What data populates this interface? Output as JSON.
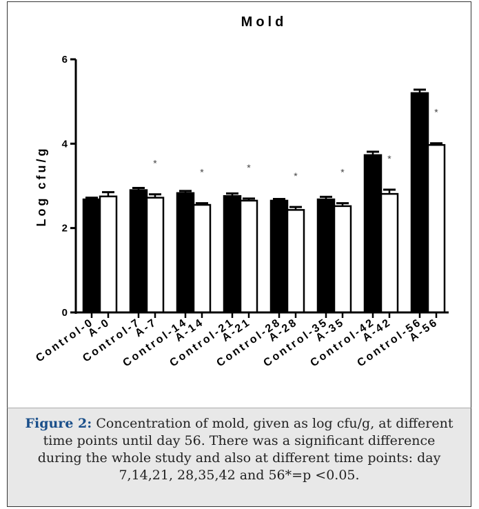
{
  "chart_data": {
    "type": "bar",
    "title": "Mold",
    "ylabel": "Log cfu/g",
    "xlabel": "",
    "ylim": [
      0,
      6
    ],
    "yticks": [
      0,
      2,
      4,
      6
    ],
    "grid": false,
    "categories": [
      "Control-0",
      "A-0",
      "Control-7",
      "A-7",
      "Control-14",
      "A-14",
      "Control-21",
      "A-21",
      "Control-28",
      "A-28",
      "Control-35",
      "A-35",
      "Control-42",
      "A-42",
      "Control-56",
      "A-56"
    ],
    "values": [
      2.68,
      2.75,
      2.9,
      2.72,
      2.83,
      2.55,
      2.76,
      2.65,
      2.65,
      2.43,
      2.68,
      2.52,
      3.73,
      2.81,
      5.2,
      3.97
    ],
    "errors": [
      0.04,
      0.1,
      0.05,
      0.08,
      0.05,
      0.04,
      0.06,
      0.05,
      0.04,
      0.07,
      0.06,
      0.07,
      0.08,
      0.1,
      0.08,
      0.04
    ],
    "significance_marks": [
      "",
      "",
      "",
      "*",
      "",
      "*",
      "",
      "*",
      "",
      "*",
      "",
      "*",
      "",
      "*",
      "",
      "*"
    ],
    "bar_fill": [
      "#000000",
      "#ffffff"
    ],
    "bar_stroke": "#000000"
  },
  "caption": {
    "label": "Figure 2:",
    "text": "Concentration of mold, given as log cfu/g, at different time points until day 56. There was a significant difference during the whole study and also at different time points: day 7,14,21, 28,35,42 and 56*=p <0.05."
  }
}
